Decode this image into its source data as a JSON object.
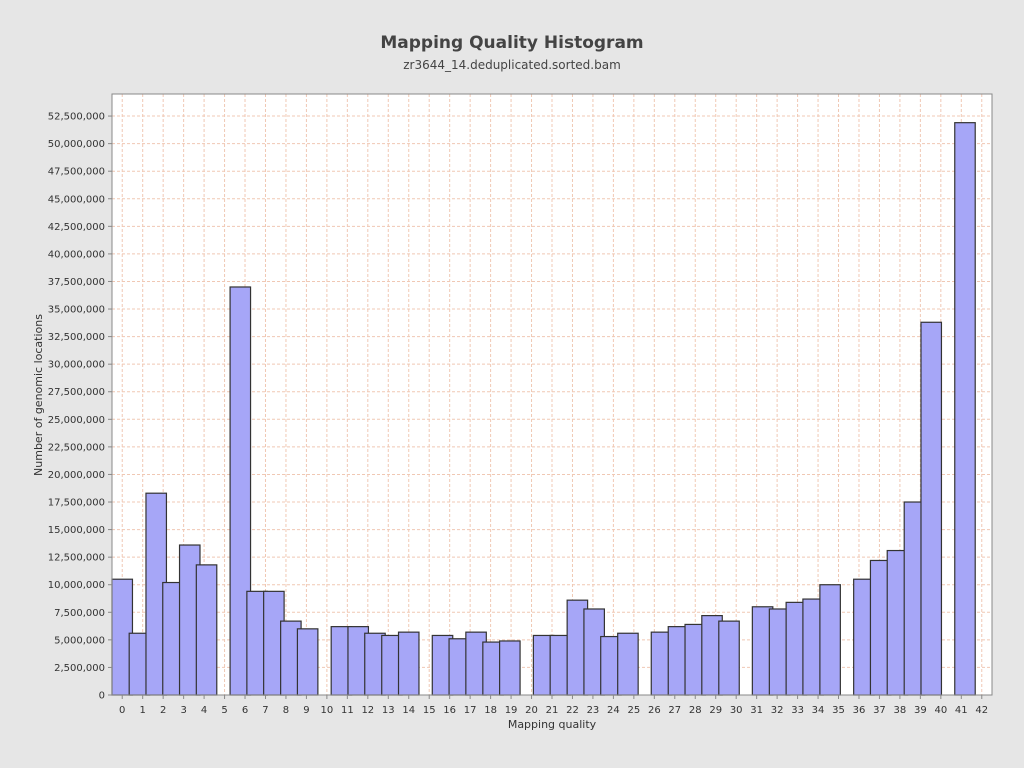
{
  "chart_data": {
    "type": "bar",
    "title": "Mapping Quality Histogram",
    "subtitle": "zr3644_14.deduplicated.sorted.bam",
    "xlabel": "Mapping quality",
    "ylabel": "Number of genomic locations",
    "xlim": [
      -0.5,
      42.5
    ],
    "ylim": [
      0,
      54500000
    ],
    "y_ticks": [
      0,
      2500000,
      5000000,
      7500000,
      10000000,
      12500000,
      15000000,
      17500000,
      20000000,
      22500000,
      25000000,
      27500000,
      30000000,
      32500000,
      35000000,
      37500000,
      40000000,
      42500000,
      45000000,
      47500000,
      50000000,
      52500000
    ],
    "y_tick_labels": [
      "0",
      "2,500,000",
      "5,000,000",
      "7,500,000",
      "10,000,000",
      "12,500,000",
      "15,000,000",
      "17,500,000",
      "20,000,000",
      "22,500,000",
      "25,000,000",
      "27,500,000",
      "30,000,000",
      "32,500,000",
      "35,000,000",
      "37,500,000",
      "40,000,000",
      "42,500,000",
      "45,000,000",
      "47,500,000",
      "50,000,000",
      "52,500,000"
    ],
    "x_ticks": [
      0,
      1,
      2,
      3,
      4,
      5,
      6,
      7,
      8,
      9,
      10,
      11,
      12,
      13,
      14,
      15,
      16,
      17,
      18,
      19,
      20,
      21,
      22,
      23,
      24,
      25,
      26,
      27,
      28,
      29,
      30,
      31,
      32,
      33,
      34,
      35,
      36,
      37,
      38,
      39,
      40,
      41,
      42
    ],
    "x_tick_labels": [
      "0",
      "1",
      "2",
      "3",
      "4",
      "5",
      "6",
      "7",
      "8",
      "9",
      "10",
      "11",
      "12",
      "13",
      "14",
      "15",
      "16",
      "17",
      "18",
      "19",
      "20",
      "21",
      "22",
      "23",
      "24",
      "25",
      "26",
      "27",
      "28",
      "29",
      "30",
      "31",
      "32",
      "33",
      "34",
      "35",
      "36",
      "37",
      "38",
      "39",
      "40",
      "41",
      "42"
    ],
    "grid": true,
    "colors": {
      "background": "#e6e6e6",
      "plot_background": "#ffffff",
      "grid": "#f0c8b4",
      "bar_fill": "#a6a6f7",
      "bar_stroke": "#333333"
    },
    "series": [
      {
        "points": [
          {
            "x": 0,
            "y": 10500000
          },
          {
            "x": 0.84,
            "y": 5600000
          },
          {
            "x": 1.66,
            "y": 18300000
          },
          {
            "x": 2.48,
            "y": 10200000
          },
          {
            "x": 3.3,
            "y": 13600000
          },
          {
            "x": 4.12,
            "y": 11800000
          },
          {
            "x": 5.77,
            "y": 37000000
          },
          {
            "x": 6.59,
            "y": 9400000
          },
          {
            "x": 7.41,
            "y": 9400000
          },
          {
            "x": 8.24,
            "y": 6700000
          },
          {
            "x": 9.06,
            "y": 6000000
          },
          {
            "x": 10.71,
            "y": 6200000
          },
          {
            "x": 11.53,
            "y": 6200000
          },
          {
            "x": 12.35,
            "y": 5600000
          },
          {
            "x": 13.18,
            "y": 5400000
          },
          {
            "x": 14.0,
            "y": 5700000
          },
          {
            "x": 15.65,
            "y": 5400000
          },
          {
            "x": 16.47,
            "y": 5100000
          },
          {
            "x": 17.29,
            "y": 5700000
          },
          {
            "x": 18.12,
            "y": 4800000
          },
          {
            "x": 18.94,
            "y": 4900000
          },
          {
            "x": 20.59,
            "y": 5400000
          },
          {
            "x": 21.41,
            "y": 5400000
          },
          {
            "x": 22.24,
            "y": 8600000
          },
          {
            "x": 23.06,
            "y": 7800000
          },
          {
            "x": 23.88,
            "y": 5300000
          },
          {
            "x": 24.71,
            "y": 5600000
          },
          {
            "x": 26.35,
            "y": 5700000
          },
          {
            "x": 27.18,
            "y": 6200000
          },
          {
            "x": 28.0,
            "y": 6400000
          },
          {
            "x": 28.82,
            "y": 7200000
          },
          {
            "x": 29.65,
            "y": 6700000
          },
          {
            "x": 31.29,
            "y": 8000000
          },
          {
            "x": 32.12,
            "y": 7800000
          },
          {
            "x": 32.94,
            "y": 8400000
          },
          {
            "x": 33.76,
            "y": 8700000
          },
          {
            "x": 34.59,
            "y": 10000000
          },
          {
            "x": 36.24,
            "y": 10500000
          },
          {
            "x": 37.06,
            "y": 12200000
          },
          {
            "x": 37.88,
            "y": 13100000
          },
          {
            "x": 38.71,
            "y": 17500000
          },
          {
            "x": 39.53,
            "y": 33800000
          },
          {
            "x": 41.18,
            "y": 51900000
          }
        ]
      }
    ]
  }
}
